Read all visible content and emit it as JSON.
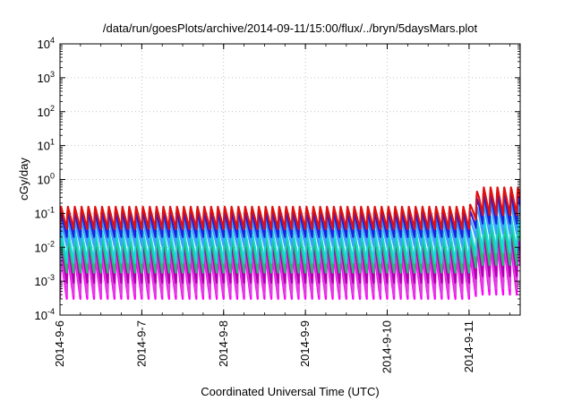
{
  "chart_data": {
    "type": "line",
    "title": "/data/run/goesPlots/archive/2014-09-11/15:00/flux/../bryn/5daysMars.plot",
    "xlabel": "Coordinated Universal Time (UTC)",
    "ylabel": "cGy/day",
    "yscale": "log",
    "ylim": [
      0.0001,
      10000
    ],
    "xlim": [
      "2014-09-06 00:00",
      "2014-09-11 15:00"
    ],
    "grid": true,
    "x_ticks": [
      "2014-9-6",
      "2014-9-7",
      "2014-9-8",
      "2014-9-9",
      "2014-9-10",
      "2014-9-11"
    ],
    "y_ticks": [
      {
        "base": "10",
        "exp": "-4",
        "value": 0.0001
      },
      {
        "base": "10",
        "exp": "-3",
        "value": 0.001
      },
      {
        "base": "10",
        "exp": "-2",
        "value": 0.01
      },
      {
        "base": "10",
        "exp": "-1",
        "value": 0.1
      },
      {
        "base": "10",
        "exp": "0",
        "value": 1
      },
      {
        "base": "10",
        "exp": "1",
        "value": 10
      },
      {
        "base": "10",
        "exp": "2",
        "value": 100
      },
      {
        "base": "10",
        "exp": "3",
        "value": 1000
      },
      {
        "base": "10",
        "exp": "4",
        "value": 10000
      }
    ],
    "oscillation_period_hours": 2.0,
    "series": [
      {
        "color": "#e01010",
        "peak_quiet": 0.17,
        "peak_event": 0.65,
        "trough_quiet": 0.035,
        "trough_event": 0.09
      },
      {
        "color": "#2020e0",
        "peak_quiet": 0.11,
        "peak_event": 0.4,
        "trough_quiet": 0.02,
        "trough_event": 0.05
      },
      {
        "color": "#3aa0ff",
        "peak_quiet": 0.065,
        "peak_event": 0.22,
        "trough_quiet": 0.011,
        "trough_event": 0.025
      },
      {
        "color": "#18d8d8",
        "peak_quiet": 0.035,
        "peak_event": 0.09,
        "trough_quiet": 0.0035,
        "trough_event": 0.007
      },
      {
        "color": "#20c070",
        "peak_quiet": 0.022,
        "peak_event": 0.05,
        "trough_quiet": 0.0018,
        "trough_event": 0.003
      },
      {
        "color": "#b000b0",
        "peak_quiet": 0.015,
        "peak_event": 0.03,
        "trough_quiet": 0.0009,
        "trough_event": 0.0014
      },
      {
        "color": "#e040e0",
        "peak_quiet": 0.01,
        "peak_event": 0.02,
        "trough_quiet": 0.0004,
        "trough_event": 0.0006
      },
      {
        "color": "#ff00ff",
        "peak_quiet": 0.006,
        "peak_event": 0.012,
        "trough_quiet": 0.0003,
        "trough_event": 0.0004
      }
    ],
    "event_start": "2014-09-11 00:00"
  }
}
